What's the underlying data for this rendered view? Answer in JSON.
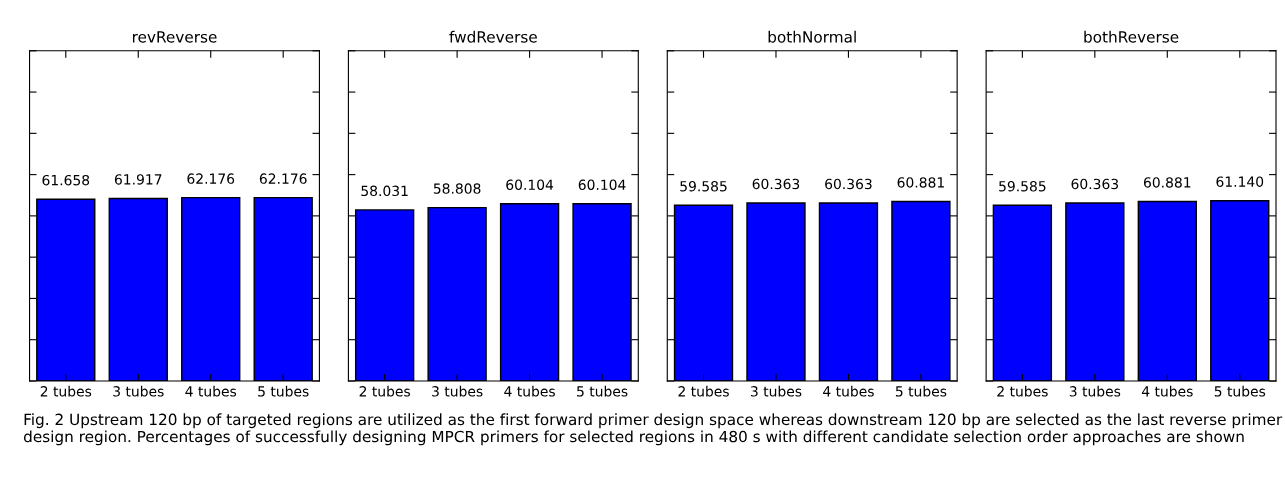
{
  "chart_data": [
    {
      "type": "bar",
      "title": "revReverse",
      "categories": [
        "2 tubes",
        "3 tubes",
        "4 tubes",
        "5 tubes"
      ],
      "values": [
        61.658,
        61.917,
        62.176,
        62.176
      ],
      "color": "#0000ff",
      "data_labels": true,
      "ylim": [
        0,
        112
      ],
      "yticks": [
        {
          "value": 0,
          "label": null
        },
        {
          "value": 14,
          "label": null
        },
        {
          "value": 28,
          "label": null
        },
        {
          "value": 42,
          "label": null
        },
        {
          "value": 56,
          "label": null
        },
        {
          "value": 70,
          "label": null
        },
        {
          "value": 84,
          "label": null
        },
        {
          "value": 98,
          "label": null
        },
        {
          "value": 112,
          "label": null
        }
      ],
      "tick_labels": "x"
    },
    {
      "type": "bar",
      "title": "fwdReverse",
      "categories": [
        "2 tubes",
        "3 tubes",
        "4 tubes",
        "5 tubes"
      ],
      "values": [
        58.031,
        58.808,
        60.104,
        60.104
      ],
      "color": "#0000ff",
      "data_labels": true,
      "ylim": [
        0,
        112
      ],
      "yticks": [
        {
          "value": 0,
          "label": null
        },
        {
          "value": 14,
          "label": null
        },
        {
          "value": 28,
          "label": null
        },
        {
          "value": 42,
          "label": null
        },
        {
          "value": 56,
          "label": null
        },
        {
          "value": 70,
          "label": null
        },
        {
          "value": 84,
          "label": null
        },
        {
          "value": 98,
          "label": null
        },
        {
          "value": 112,
          "label": null
        }
      ],
      "tick_labels": "x"
    },
    {
      "type": "bar",
      "title": "bothNormal",
      "categories": [
        "2 tubes",
        "3 tubes",
        "4 tubes",
        "5 tubes"
      ],
      "values": [
        59.585,
        60.363,
        60.363,
        60.881
      ],
      "color": "#0000ff",
      "data_labels": true,
      "ylim": [
        0,
        112
      ],
      "yticks": [
        {
          "value": 0,
          "label": null
        },
        {
          "value": 14,
          "label": null
        },
        {
          "value": 28,
          "label": null
        },
        {
          "value": 42,
          "label": null
        },
        {
          "value": 56,
          "label": null
        },
        {
          "value": 70,
          "label": null
        },
        {
          "value": 84,
          "label": null
        },
        {
          "value": 98,
          "label": null
        },
        {
          "value": 112,
          "label": null
        }
      ],
      "tick_labels": "x"
    },
    {
      "type": "bar",
      "title": "bothReverse",
      "categories": [
        "2 tubes",
        "3 tubes",
        "4 tubes",
        "5 tubes"
      ],
      "values": [
        59.585,
        60.363,
        60.881,
        61.14
      ],
      "value_labels": [
        "59.585",
        "60.363",
        "60.881",
        "61.140"
      ],
      "color": "#0000ff",
      "ylim": [
        0,
        112
      ],
      "yticks": [
        {
          "value": 0,
          "label": null
        },
        {
          "value": 14,
          "label": null
        },
        {
          "value": 28,
          "label": null
        },
        {
          "value": 42,
          "label": null
        },
        {
          "value": 56,
          "label": null
        },
        {
          "value": 70,
          "label": null
        },
        {
          "value": 84,
          "label": null
        },
        {
          "value": 98,
          "label": null
        },
        {
          "value": 112,
          "label": null
        }
      ],
      "tick_labels": "x",
      "annotations": [
        "Fig. 2 Upstream 120 bp of targeted regions are utilized as the first forward primer design space whereas downstream 120 bp are selected as the last reverse primer design region. Percentages of successfully designing MPCR primers for selected regions in 480 s with different candidate selection order approaches are shown"
      ]
    }
  ]
}
